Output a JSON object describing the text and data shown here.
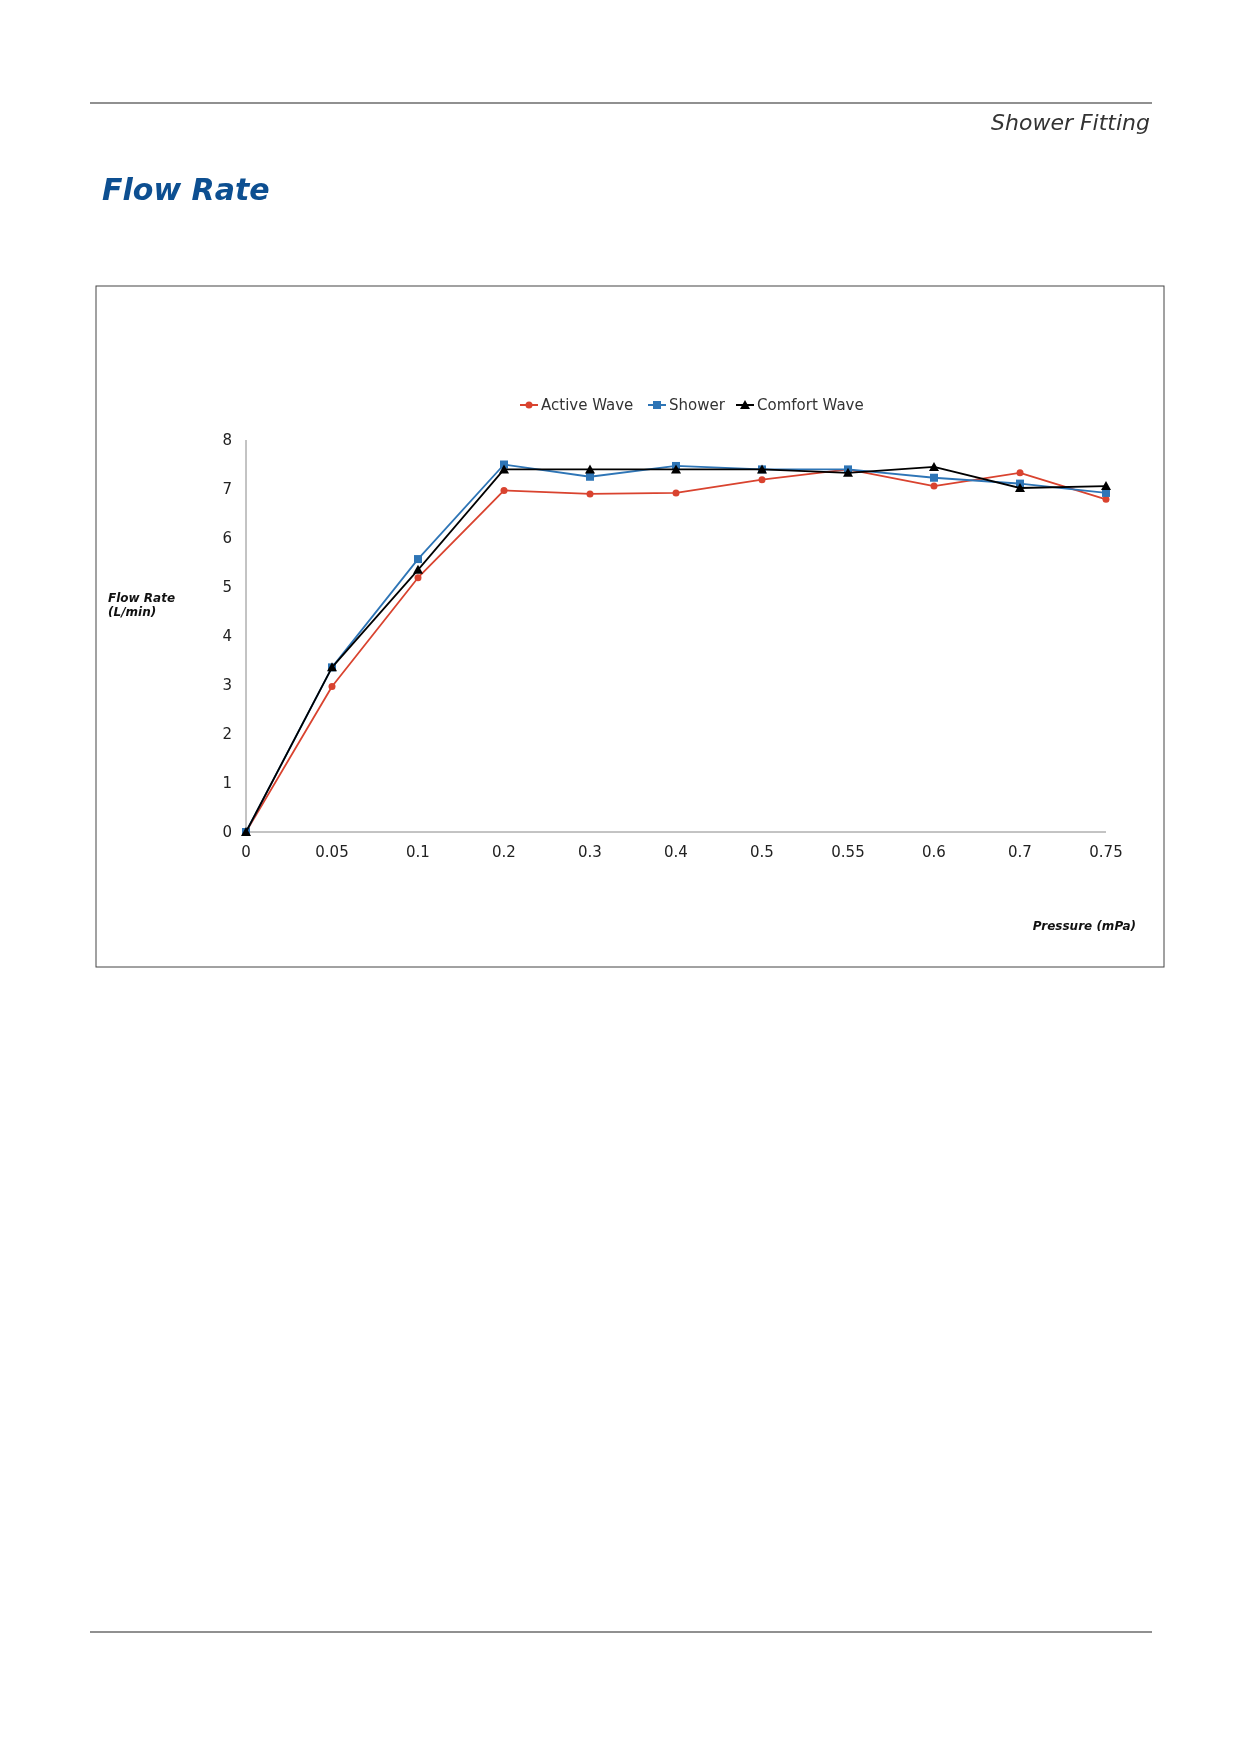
{
  "chart_data": {
    "type": "line",
    "title": "Flow Rate",
    "subtitle": "Shower Fitting",
    "xlabel": "Pressure (mPa)",
    "ylabel": "Flow Rate (L/min)",
    "categories": [
      "0",
      "0.05",
      "0.1",
      "0.2",
      "0.3",
      "0.4",
      "0.5",
      "0.55",
      "0.6",
      "0.7",
      "0.75"
    ],
    "ylim": [
      0,
      8
    ],
    "yticks": [
      0,
      1,
      2,
      3,
      4,
      5,
      6,
      7,
      8
    ],
    "grid": false,
    "legend": "top",
    "series": [
      {
        "name": "Active Wave",
        "color": "#d9432f",
        "marker": "circle",
        "values": [
          0,
          2.97,
          5.19,
          6.97,
          6.9,
          6.92,
          7.19,
          7.4,
          7.06,
          7.33,
          6.79
        ]
      },
      {
        "name": "Shower",
        "color": "#2e75b6",
        "marker": "square",
        "values": [
          0,
          3.36,
          5.57,
          7.5,
          7.25,
          7.47,
          7.4,
          7.4,
          7.23,
          7.11,
          6.92
        ]
      },
      {
        "name": "Comfort Wave",
        "color": "#000000",
        "marker": "triangle",
        "values": [
          0,
          3.36,
          5.35,
          7.4,
          7.4,
          7.4,
          7.4,
          7.33,
          7.45,
          7.02,
          7.06
        ]
      }
    ]
  }
}
